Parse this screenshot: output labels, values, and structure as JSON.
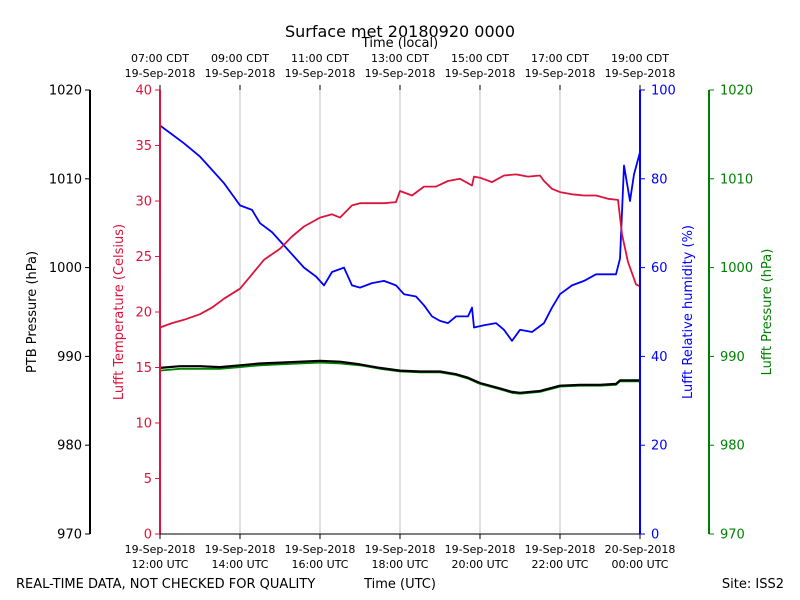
{
  "chart_data": {
    "type": "line",
    "title": "Surface met 20180920 0000",
    "top_axis_label": "Time (local)",
    "xlabel": "Time (UTC)",
    "footer_left": "REAL-TIME DATA, NOT CHECKED FOR QUALITY",
    "footer_right": "Site: ISS2",
    "x_range_hours": [
      12,
      24
    ],
    "x_ticks": [
      {
        "hour": 12,
        "utc_date": "19-Sep-2018",
        "utc_time": "12:00 UTC",
        "local_time": "07:00 CDT",
        "local_date": "19-Sep-2018"
      },
      {
        "hour": 14,
        "utc_date": "19-Sep-2018",
        "utc_time": "14:00 UTC",
        "local_time": "09:00 CDT",
        "local_date": "19-Sep-2018"
      },
      {
        "hour": 16,
        "utc_date": "19-Sep-2018",
        "utc_time": "16:00 UTC",
        "local_time": "11:00 CDT",
        "local_date": "19-Sep-2018"
      },
      {
        "hour": 18,
        "utc_date": "19-Sep-2018",
        "utc_time": "18:00 UTC",
        "local_time": "13:00 CDT",
        "local_date": "19-Sep-2018"
      },
      {
        "hour": 20,
        "utc_date": "19-Sep-2018",
        "utc_time": "20:00 UTC",
        "local_time": "15:00 CDT",
        "local_date": "19-Sep-2018"
      },
      {
        "hour": 22,
        "utc_date": "19-Sep-2018",
        "utc_time": "22:00 UTC",
        "local_time": "17:00 CDT",
        "local_date": "19-Sep-2018"
      },
      {
        "hour": 24,
        "utc_date": "20-Sep-2018",
        "utc_time": "00:00 UTC",
        "local_time": "19:00 CDT",
        "local_date": "19-Sep-2018"
      }
    ],
    "axes": {
      "ptb": {
        "label": "PTB Pressure (hPa)",
        "ylim": [
          970,
          1020
        ],
        "ticks": [
          970,
          980,
          990,
          1000,
          1010,
          1020
        ],
        "color": "#000000"
      },
      "temp": {
        "label": "Lufft Temperature (Celsius)",
        "ylim": [
          0,
          40
        ],
        "ticks": [
          0,
          5,
          10,
          15,
          20,
          25,
          30,
          35,
          40
        ],
        "color": "#dc143c"
      },
      "rh": {
        "label": "Lufft Relative humidity (%)",
        "ylim": [
          0,
          100
        ],
        "ticks": [
          0,
          20,
          40,
          60,
          80,
          100
        ],
        "color": "#0000ff"
      },
      "lufft_p": {
        "label": "Lufft Pressure (hPa)",
        "ylim": [
          970,
          1020
        ],
        "ticks": [
          970,
          980,
          990,
          1000,
          1010,
          1020
        ],
        "color": "#008000"
      }
    },
    "series": [
      {
        "name": "Lufft Temperature",
        "axis": "temp",
        "color": "#dc143c",
        "points": [
          [
            12.0,
            18.6
          ],
          [
            12.3,
            19.0
          ],
          [
            12.6,
            19.3
          ],
          [
            13.0,
            19.8
          ],
          [
            13.3,
            20.4
          ],
          [
            13.6,
            21.2
          ],
          [
            14.0,
            22.1
          ],
          [
            14.3,
            23.4
          ],
          [
            14.6,
            24.7
          ],
          [
            15.0,
            25.7
          ],
          [
            15.3,
            26.8
          ],
          [
            15.6,
            27.7
          ],
          [
            16.0,
            28.5
          ],
          [
            16.3,
            28.8
          ],
          [
            16.5,
            28.5
          ],
          [
            16.8,
            29.6
          ],
          [
            17.0,
            29.8
          ],
          [
            17.3,
            29.8
          ],
          [
            17.6,
            29.8
          ],
          [
            17.9,
            29.9
          ],
          [
            18.0,
            30.9
          ],
          [
            18.3,
            30.5
          ],
          [
            18.6,
            31.3
          ],
          [
            18.9,
            31.3
          ],
          [
            19.2,
            31.8
          ],
          [
            19.5,
            32.0
          ],
          [
            19.8,
            31.4
          ],
          [
            19.85,
            32.2
          ],
          [
            20.0,
            32.1
          ],
          [
            20.3,
            31.7
          ],
          [
            20.6,
            32.3
          ],
          [
            20.9,
            32.4
          ],
          [
            21.2,
            32.2
          ],
          [
            21.5,
            32.3
          ],
          [
            21.6,
            31.8
          ],
          [
            21.8,
            31.1
          ],
          [
            22.0,
            30.8
          ],
          [
            22.3,
            30.6
          ],
          [
            22.6,
            30.5
          ],
          [
            22.9,
            30.5
          ],
          [
            23.2,
            30.2
          ],
          [
            23.45,
            30.1
          ],
          [
            23.55,
            27.0
          ],
          [
            23.7,
            24.5
          ],
          [
            23.9,
            22.5
          ],
          [
            24.0,
            22.3
          ]
        ]
      },
      {
        "name": "Lufft Relative humidity",
        "axis": "rh",
        "color": "#0000ff",
        "points": [
          [
            12.0,
            92.0
          ],
          [
            12.3,
            90.0
          ],
          [
            12.6,
            88.0
          ],
          [
            13.0,
            85.0
          ],
          [
            13.3,
            82.0
          ],
          [
            13.6,
            79.0
          ],
          [
            14.0,
            74.0
          ],
          [
            14.3,
            73.0
          ],
          [
            14.5,
            70.0
          ],
          [
            14.8,
            68.0
          ],
          [
            15.0,
            66.0
          ],
          [
            15.3,
            63.0
          ],
          [
            15.6,
            60.0
          ],
          [
            15.9,
            58.0
          ],
          [
            16.1,
            56.0
          ],
          [
            16.3,
            59.0
          ],
          [
            16.6,
            60.0
          ],
          [
            16.8,
            56.0
          ],
          [
            17.0,
            55.5
          ],
          [
            17.3,
            56.5
          ],
          [
            17.6,
            57.0
          ],
          [
            17.9,
            56.0
          ],
          [
            18.1,
            54.0
          ],
          [
            18.4,
            53.5
          ],
          [
            18.6,
            51.5
          ],
          [
            18.8,
            49.0
          ],
          [
            19.0,
            48.0
          ],
          [
            19.2,
            47.5
          ],
          [
            19.4,
            49.0
          ],
          [
            19.7,
            49.0
          ],
          [
            19.8,
            51.0
          ],
          [
            19.85,
            46.5
          ],
          [
            20.1,
            47.0
          ],
          [
            20.4,
            47.5
          ],
          [
            20.6,
            46.0
          ],
          [
            20.8,
            43.5
          ],
          [
            21.0,
            46.0
          ],
          [
            21.3,
            45.5
          ],
          [
            21.6,
            47.5
          ],
          [
            21.8,
            51.0
          ],
          [
            22.0,
            54.0
          ],
          [
            22.3,
            56.0
          ],
          [
            22.6,
            57.0
          ],
          [
            22.9,
            58.5
          ],
          [
            23.2,
            58.5
          ],
          [
            23.4,
            58.5
          ],
          [
            23.5,
            62.0
          ],
          [
            23.6,
            83.0
          ],
          [
            23.75,
            75.0
          ],
          [
            23.85,
            81.0
          ],
          [
            24.0,
            86.0
          ]
        ]
      },
      {
        "name": "PTB Pressure",
        "axis": "ptb",
        "color": "#000000",
        "points": [
          [
            12.0,
            988.7
          ],
          [
            12.5,
            988.9
          ],
          [
            13.0,
            988.9
          ],
          [
            13.5,
            988.8
          ],
          [
            14.0,
            989.0
          ],
          [
            14.5,
            989.2
          ],
          [
            15.0,
            989.3
          ],
          [
            15.5,
            989.4
          ],
          [
            16.0,
            989.5
          ],
          [
            16.5,
            989.4
          ],
          [
            17.0,
            989.1
          ],
          [
            17.5,
            988.7
          ],
          [
            18.0,
            988.4
          ],
          [
            18.5,
            988.3
          ],
          [
            19.0,
            988.3
          ],
          [
            19.4,
            988.0
          ],
          [
            19.7,
            987.6
          ],
          [
            19.85,
            987.3
          ],
          [
            20.0,
            987.0
          ],
          [
            20.5,
            986.4
          ],
          [
            20.8,
            986.0
          ],
          [
            21.0,
            985.9
          ],
          [
            21.5,
            986.1
          ],
          [
            22.0,
            986.7
          ],
          [
            22.5,
            986.8
          ],
          [
            23.0,
            986.8
          ],
          [
            23.4,
            986.9
          ],
          [
            23.5,
            987.3
          ],
          [
            24.0,
            987.3
          ]
        ]
      },
      {
        "name": "Lufft Pressure",
        "axis": "lufft_p",
        "color": "#008000",
        "points": [
          [
            12.0,
            988.4
          ],
          [
            12.5,
            988.6
          ],
          [
            13.0,
            988.6
          ],
          [
            13.5,
            988.6
          ],
          [
            14.0,
            988.8
          ],
          [
            14.5,
            989.0
          ],
          [
            15.0,
            989.1
          ],
          [
            15.5,
            989.2
          ],
          [
            16.0,
            989.3
          ],
          [
            16.5,
            989.2
          ],
          [
            17.0,
            989.0
          ],
          [
            17.5,
            988.6
          ],
          [
            18.0,
            988.3
          ],
          [
            18.5,
            988.2
          ],
          [
            19.0,
            988.2
          ],
          [
            19.4,
            987.9
          ],
          [
            19.7,
            987.5
          ],
          [
            19.85,
            987.2
          ],
          [
            20.0,
            986.9
          ],
          [
            20.5,
            986.3
          ],
          [
            20.8,
            985.9
          ],
          [
            21.0,
            985.8
          ],
          [
            21.5,
            986.0
          ],
          [
            22.0,
            986.6
          ],
          [
            22.5,
            986.7
          ],
          [
            23.0,
            986.7
          ],
          [
            23.4,
            986.8
          ],
          [
            23.5,
            987.2
          ],
          [
            24.0,
            987.2
          ]
        ]
      }
    ]
  }
}
